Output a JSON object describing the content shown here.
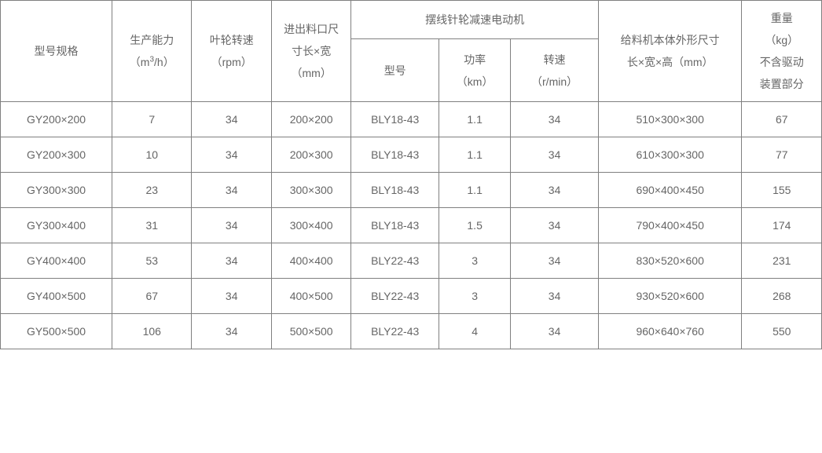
{
  "table": {
    "headers": {
      "model": "型号规格",
      "capacity_line1": "生产能力",
      "capacity_line2": "（m",
      "capacity_sup": "3",
      "capacity_line2_end": "/h）",
      "impeller_line1": "叶轮转速",
      "impeller_line2": "（rpm）",
      "inlet_line1": "进出料口尺",
      "inlet_line2": "寸长×宽",
      "inlet_line3": "（mm）",
      "motor_group": "摆线针轮减速电动机",
      "dimensions_line1": "给料机本体外形尺寸",
      "dimensions_line2": "长×宽×高（mm）",
      "weight_line1": "重量",
      "weight_line2": "（kg）",
      "weight_line3": "不含驱动",
      "weight_line4": "装置部分",
      "motor_model": "型号",
      "motor_power_line1": "功率",
      "motor_power_line2": "（km）",
      "motor_speed_line1": "转速",
      "motor_speed_line2": "（r/min）"
    },
    "rows": [
      {
        "model": "GY200×200",
        "capacity": "7",
        "rpm": "34",
        "inlet": "200×200",
        "motor_model": "BLY18-43",
        "power": "1.1",
        "speed": "34",
        "dims": "510×300×300",
        "weight": "67"
      },
      {
        "model": "GY200×300",
        "capacity": "10",
        "rpm": "34",
        "inlet": "200×300",
        "motor_model": "BLY18-43",
        "power": "1.1",
        "speed": "34",
        "dims": "610×300×300",
        "weight": "77"
      },
      {
        "model": "GY300×300",
        "capacity": "23",
        "rpm": "34",
        "inlet": "300×300",
        "motor_model": "BLY18-43",
        "power": "1.1",
        "speed": "34",
        "dims": "690×400×450",
        "weight": "155"
      },
      {
        "model": "GY300×400",
        "capacity": "31",
        "rpm": "34",
        "inlet": "300×400",
        "motor_model": "BLY18-43",
        "power": "1.5",
        "speed": "34",
        "dims": "790×400×450",
        "weight": "174"
      },
      {
        "model": "GY400×400",
        "capacity": "53",
        "rpm": "34",
        "inlet": "400×400",
        "motor_model": "BLY22-43",
        "power": "3",
        "speed": "34",
        "dims": "830×520×600",
        "weight": "231"
      },
      {
        "model": "GY400×500",
        "capacity": "67",
        "rpm": "34",
        "inlet": "400×500",
        "motor_model": "BLY22-43",
        "power": "3",
        "speed": "34",
        "dims": "930×520×600",
        "weight": "268"
      },
      {
        "model": "GY500×500",
        "capacity": "106",
        "rpm": "34",
        "inlet": "500×500",
        "motor_model": "BLY22-43",
        "power": "4",
        "speed": "34",
        "dims": "960×640×760",
        "weight": "550"
      }
    ],
    "style": {
      "border_color": "#808080",
      "text_color": "#666666",
      "background_color": "#ffffff",
      "font_size": 14,
      "font_family": "Microsoft YaHei",
      "line_height": 2
    }
  }
}
